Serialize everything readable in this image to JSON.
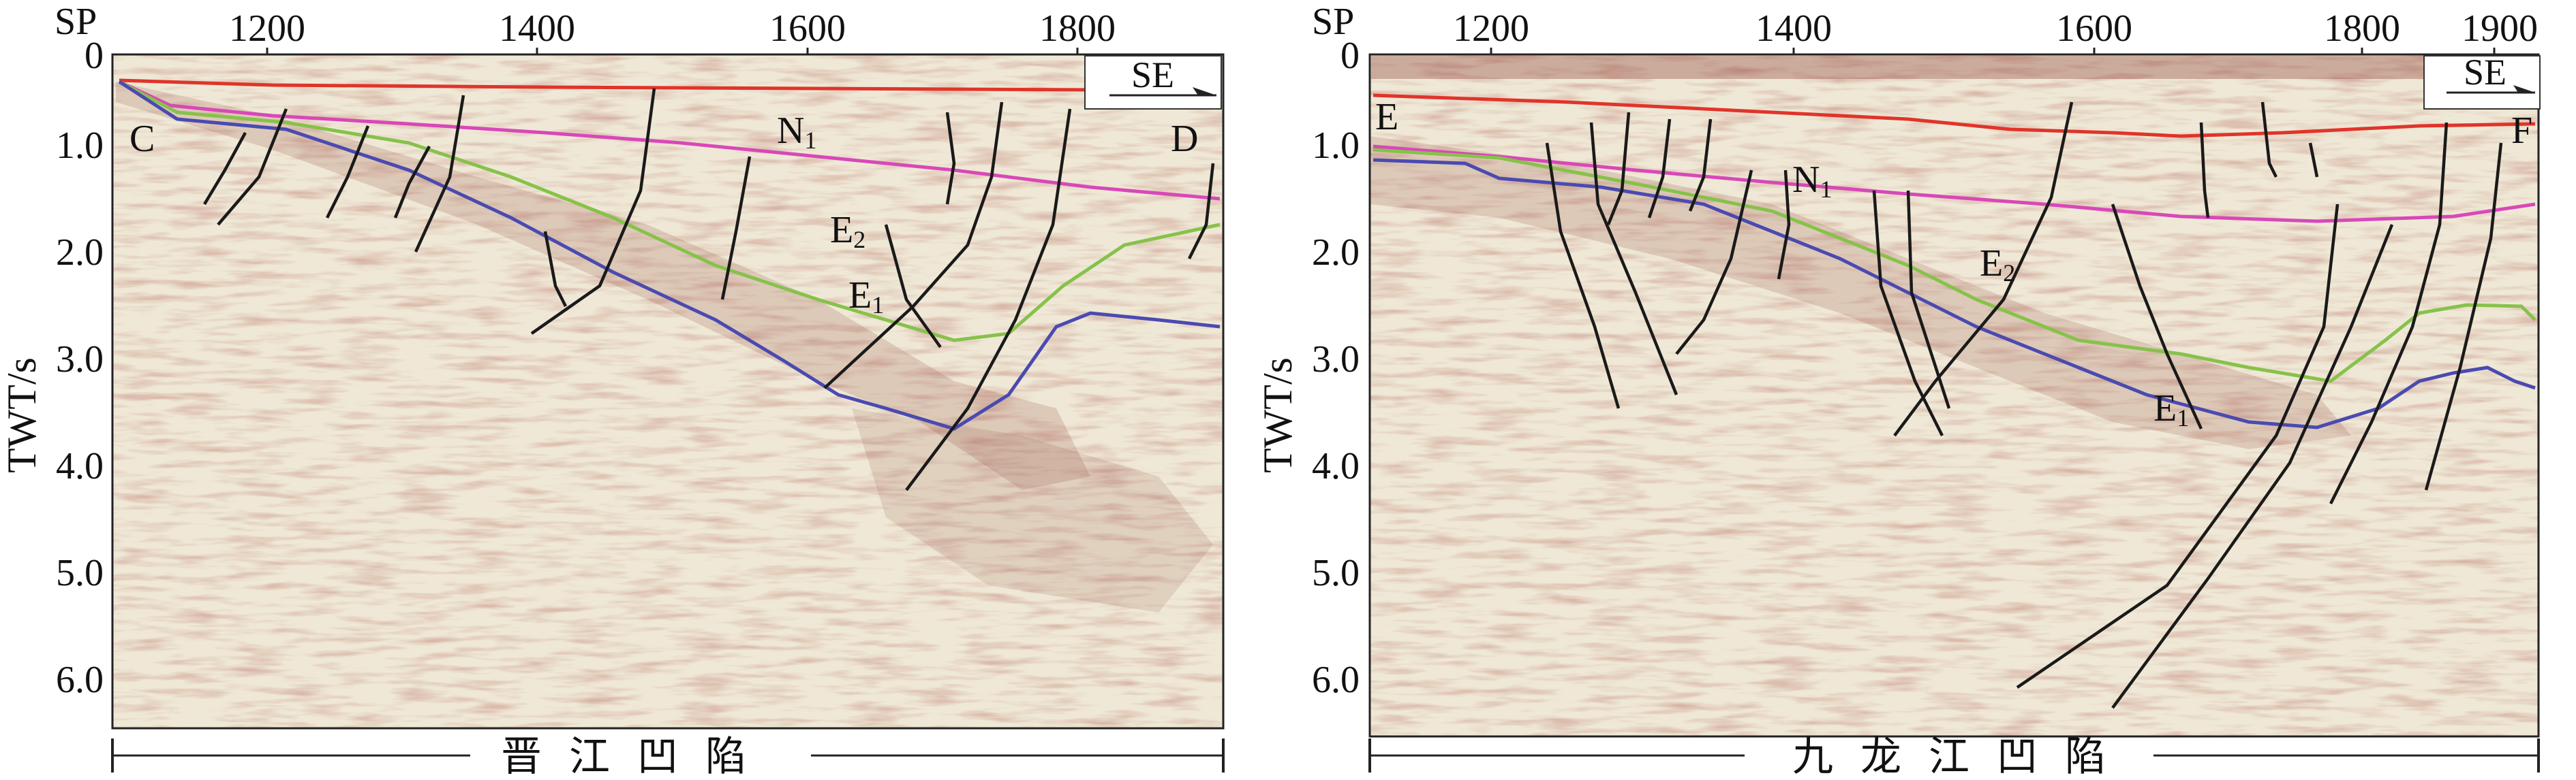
{
  "colors": {
    "background": "#efe8d6",
    "noise_dark": "#8a3d32",
    "noise_light": "#d9cdb3",
    "fault": "#1a1a1a",
    "horizon_top": "#e0342a",
    "horizon_N1": "#d848b8",
    "horizon_E2": "#86c24a",
    "horizon_E1": "#4a4ab0"
  },
  "panels": [
    {
      "id": "left",
      "sp_label": "SP",
      "x_ticks": [
        "1200",
        "1400",
        "1600",
        "1800"
      ],
      "y_ticks": [
        "0",
        "1.0",
        "2.0",
        "3.0",
        "4.0",
        "5.0",
        "6.0"
      ],
      "y_title": "TWT/s",
      "start_label": "C",
      "end_label": "D",
      "direction": "SE",
      "horizons": [
        {
          "id": "N1",
          "main": "N",
          "sub": "1"
        },
        {
          "id": "E2",
          "main": "E",
          "sub": "2"
        },
        {
          "id": "E1",
          "main": "E",
          "sub": "1"
        }
      ],
      "basin_name": "晋江凹陷"
    },
    {
      "id": "right",
      "sp_label": "SP",
      "x_ticks": [
        "1200",
        "1400",
        "1600",
        "1800",
        "1900"
      ],
      "y_ticks": [
        "0",
        "1.0",
        "2.0",
        "3.0",
        "4.0",
        "5.0",
        "6.0"
      ],
      "y_title": "TWT/s",
      "start_label": "E",
      "end_label": "F",
      "direction": "SE",
      "horizons": [
        {
          "id": "N1",
          "main": "N",
          "sub": "1"
        },
        {
          "id": "E2",
          "main": "E",
          "sub": "2"
        },
        {
          "id": "E1",
          "main": "E",
          "sub": "1"
        }
      ],
      "basin_name": "九龙江凹陷"
    }
  ]
}
